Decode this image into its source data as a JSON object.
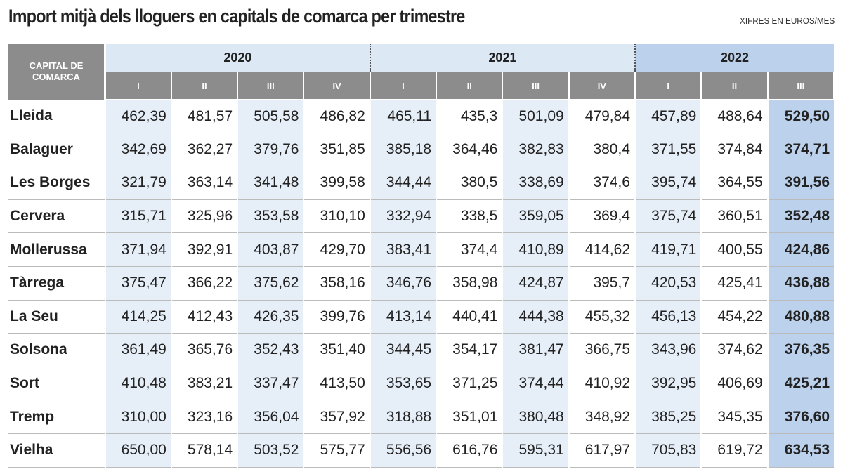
{
  "header": {
    "title": "Import mitjà dels lloguers en capitals de comarca per trimestre",
    "note": "XIFRES EN EUROS/MES"
  },
  "table": {
    "corner": "CAPITAL DE COMARCA",
    "years": [
      {
        "label": "2020",
        "quarters": [
          "I",
          "II",
          "III",
          "IV"
        ]
      },
      {
        "label": "2021",
        "quarters": [
          "I",
          "II",
          "III",
          "IV"
        ]
      },
      {
        "label": "2022",
        "quarters": [
          "I",
          "II",
          "III"
        ]
      }
    ],
    "rows": [
      {
        "name": "Lleida",
        "values": [
          "462,39",
          "481,57",
          "505,58",
          "486,82",
          "465,11",
          "435,3",
          "501,09",
          "479,84",
          "457,89",
          "488,64",
          "529,50"
        ]
      },
      {
        "name": "Balaguer",
        "values": [
          "342,69",
          "362,27",
          "379,76",
          "351,85",
          "385,18",
          "364,46",
          "382,83",
          "380,4",
          "371,55",
          "374,84",
          "374,71"
        ]
      },
      {
        "name": "Les Borges",
        "values": [
          "321,79",
          "363,14",
          "341,48",
          "399,58",
          "344,44",
          "380,5",
          "338,69",
          "374,6",
          "395,74",
          "364,55",
          "391,56"
        ]
      },
      {
        "name": "Cervera",
        "values": [
          "315,71",
          "325,96",
          "353,58",
          "310,10",
          "332,94",
          "338,5",
          "359,05",
          "369,4",
          "375,74",
          "360,51",
          "352,48"
        ]
      },
      {
        "name": "Mollerussa",
        "values": [
          "371,94",
          "392,91",
          "403,87",
          "429,70",
          "383,41",
          "374,4",
          "410,89",
          "414,62",
          "419,71",
          "400,55",
          "424,86"
        ]
      },
      {
        "name": "Tàrrega",
        "values": [
          "375,47",
          "366,22",
          "375,62",
          "358,16",
          "346,76",
          "358,98",
          "424,87",
          "395,7",
          "420,53",
          "425,41",
          "436,88"
        ]
      },
      {
        "name": "La Seu",
        "values": [
          "414,25",
          "412,43",
          "426,35",
          "399,76",
          "413,14",
          "440,41",
          "444,38",
          "455,32",
          "456,13",
          "454,22",
          "480,88"
        ]
      },
      {
        "name": "Solsona",
        "values": [
          "361,49",
          "365,76",
          "352,43",
          "351,40",
          "344,45",
          "354,17",
          "381,47",
          "366,75",
          "343,96",
          "374,62",
          "376,35"
        ]
      },
      {
        "name": "Sort",
        "values": [
          "410,48",
          "383,21",
          "337,47",
          "413,50",
          "353,65",
          "371,25",
          "374,44",
          "410,92",
          "392,95",
          "406,69",
          "425,21"
        ]
      },
      {
        "name": "Tremp",
        "values": [
          "310,00",
          "323,16",
          "356,04",
          "357,92",
          "318,88",
          "351,01",
          "380,48",
          "348,92",
          "385,25",
          "345,35",
          "376,60"
        ]
      },
      {
        "name": "Vielha",
        "values": [
          "650,00",
          "578,14",
          "503,52",
          "575,77",
          "556,56",
          "616,76",
          "595,31",
          "617,97",
          "705,83",
          "619,72",
          "634,53"
        ]
      }
    ]
  }
}
